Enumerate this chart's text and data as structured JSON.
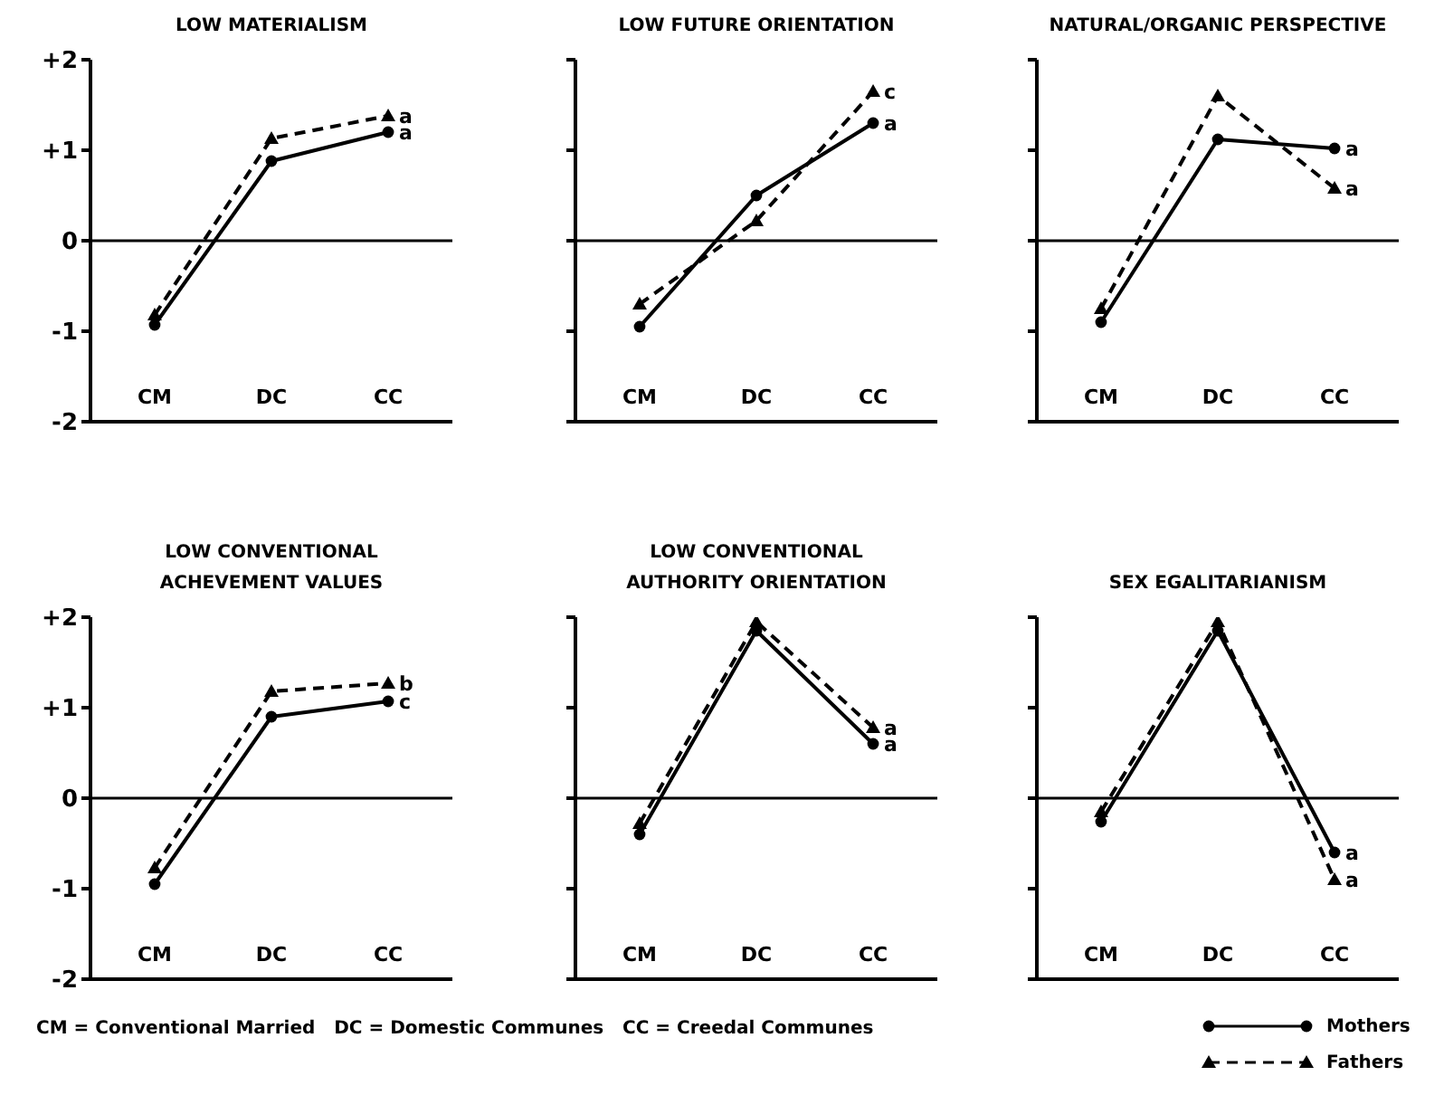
{
  "chart_data": [
    {
      "type": "line",
      "title": "LOW MATERIALISM",
      "categories": [
        "CM",
        "DC",
        "CC"
      ],
      "ylim": [
        -2,
        2
      ],
      "yticks": [
        {
          "value": 2,
          "label": "+2"
        },
        {
          "value": 1,
          "label": "+1"
        },
        0,
        -1,
        -2
      ],
      "ref_lines": [
        {
          "axis": "y",
          "value": 0,
          "color": "#000000"
        }
      ],
      "series": [
        {
          "color": "#000000",
          "marker": "circle",
          "line_style": "solid",
          "values": [
            -0.93,
            0.88,
            1.2
          ]
        },
        {
          "color": "#000000",
          "marker": "triangle",
          "line_style": "dashed",
          "values": [
            -0.82,
            1.13,
            1.38
          ]
        }
      ],
      "annotations": [
        {
          "text": "a",
          "x": "CC",
          "y": 1.38
        },
        {
          "text": "a",
          "x": "CC",
          "y": 1.2
        }
      ]
    },
    {
      "type": "line",
      "title": "LOW FUTURE ORIENTATION",
      "categories": [
        "CM",
        "DC",
        "CC"
      ],
      "ylim": [
        -2,
        2
      ],
      "yticks": [
        {
          "value": 2,
          "label": null
        },
        {
          "value": 1,
          "label": null
        },
        {
          "value": 0,
          "label": null
        },
        {
          "value": -1,
          "label": null
        },
        {
          "value": -2,
          "label": null
        }
      ],
      "tick_labels": "x",
      "ref_lines": [
        {
          "axis": "y",
          "value": 0,
          "color": "#000000"
        }
      ],
      "series": [
        {
          "color": "#000000",
          "marker": "circle",
          "line_style": "solid",
          "values": [
            -0.95,
            0.5,
            1.3
          ]
        },
        {
          "color": "#000000",
          "marker": "triangle",
          "line_style": "dashed",
          "values": [
            -0.7,
            0.22,
            1.65
          ]
        }
      ],
      "annotations": [
        {
          "text": "c",
          "x": "CC",
          "y": 1.65
        },
        {
          "text": "a",
          "x": "CC",
          "y": 1.3
        }
      ]
    },
    {
      "type": "line",
      "title": "NATURAL/ORGANIC PERSPECTIVE",
      "categories": [
        "CM",
        "DC",
        "CC"
      ],
      "ylim": [
        -2,
        2
      ],
      "yticks": [
        {
          "value": 2,
          "label": null
        },
        {
          "value": 1,
          "label": null
        },
        {
          "value": 0,
          "label": null
        },
        {
          "value": -1,
          "label": null
        },
        {
          "value": -2,
          "label": null
        }
      ],
      "tick_labels": "x",
      "ref_lines": [
        {
          "axis": "y",
          "value": 0,
          "color": "#000000"
        }
      ],
      "series": [
        {
          "color": "#000000",
          "marker": "circle",
          "line_style": "solid",
          "values": [
            -0.9,
            1.12,
            1.02
          ]
        },
        {
          "color": "#000000",
          "marker": "triangle",
          "line_style": "dashed",
          "values": [
            -0.75,
            1.6,
            0.58
          ]
        }
      ],
      "annotations": [
        {
          "text": "a",
          "x": "CC",
          "y": 1.02
        },
        {
          "text": "a",
          "x": "CC",
          "y": 0.58
        }
      ]
    },
    {
      "type": "line",
      "title": "LOW CONVENTIONAL ACHEVEMENT VALUES",
      "categories": [
        "CM",
        "DC",
        "CC"
      ],
      "ylim": [
        -2,
        2
      ],
      "yticks": [
        {
          "value": 2,
          "label": "+2"
        },
        {
          "value": 1,
          "label": "+1"
        },
        0,
        -1,
        -2
      ],
      "ref_lines": [
        {
          "axis": "y",
          "value": 0,
          "color": "#000000"
        }
      ],
      "series": [
        {
          "color": "#000000",
          "marker": "circle",
          "line_style": "solid",
          "values": [
            -0.95,
            0.9,
            1.07
          ]
        },
        {
          "color": "#000000",
          "marker": "triangle",
          "line_style": "dashed",
          "values": [
            -0.77,
            1.18,
            1.27
          ]
        }
      ],
      "annotations": [
        {
          "text": "b",
          "x": "CC",
          "y": 1.27
        },
        {
          "text": "c",
          "x": "CC",
          "y": 1.07
        },
        "CM = Conventional Married   DC = Domestic Communes   CC = Creedal Communes"
      ]
    },
    {
      "type": "line",
      "title": "LOW CONVENTIONAL AUTHORITY ORIENTATION",
      "categories": [
        "CM",
        "DC",
        "CC"
      ],
      "ylim": [
        -2,
        2
      ],
      "yticks": [
        {
          "value": 2,
          "label": null
        },
        {
          "value": 1,
          "label": null
        },
        {
          "value": 0,
          "label": null
        },
        {
          "value": -1,
          "label": null
        },
        {
          "value": -2,
          "label": null
        }
      ],
      "tick_labels": "x",
      "ref_lines": [
        {
          "axis": "y",
          "value": 0,
          "color": "#000000"
        }
      ],
      "series": [
        {
          "color": "#000000",
          "marker": "circle",
          "line_style": "solid",
          "values": [
            -0.4,
            1.85,
            0.6
          ]
        },
        {
          "color": "#000000",
          "marker": "triangle",
          "line_style": "dashed",
          "values": [
            -0.28,
            1.95,
            0.78
          ]
        }
      ],
      "annotations": [
        {
          "text": "a",
          "x": "CC",
          "y": 0.78
        },
        {
          "text": "a",
          "x": "CC",
          "y": 0.6
        }
      ]
    },
    {
      "type": "line",
      "title": "SEX EGALITARIANISM",
      "categories": [
        "CM",
        "DC",
        "CC"
      ],
      "ylim": [
        -2,
        2
      ],
      "yticks": [
        {
          "value": 2,
          "label": null
        },
        {
          "value": 1,
          "label": null
        },
        {
          "value": 0,
          "label": null
        },
        {
          "value": -1,
          "label": null
        },
        {
          "value": -2,
          "label": null
        }
      ],
      "tick_labels": "x",
      "legend": "bottom right",
      "ref_lines": [
        {
          "axis": "y",
          "value": 0,
          "color": "#000000"
        }
      ],
      "series": [
        {
          "name": "Mothers",
          "color": "#000000",
          "marker": "circle",
          "line_style": "solid",
          "values": [
            -0.26,
            1.85,
            -0.6
          ]
        },
        {
          "name": "Fathers",
          "color": "#000000",
          "marker": "triangle",
          "line_style": "dashed",
          "values": [
            -0.15,
            1.95,
            -0.9
          ]
        }
      ],
      "annotations": [
        {
          "text": "a",
          "x": "CC",
          "y": -0.6
        },
        {
          "text": "a",
          "x": "CC",
          "y": -0.9
        }
      ]
    }
  ]
}
